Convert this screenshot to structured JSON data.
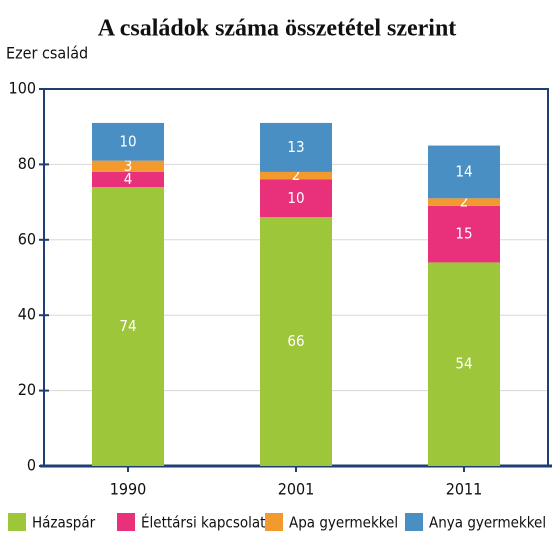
{
  "chart_data": {
    "type": "stacked_bar",
    "title": "A családok száma összetétel szerint",
    "y_label": "Ezer család",
    "categories": [
      "1990",
      "2001",
      "2011"
    ],
    "series": [
      {
        "name": "Házaspár",
        "color": "#9dc63b",
        "values": [
          74,
          66,
          54
        ]
      },
      {
        "name": "Élettársi kapcsolat",
        "color": "#e8317a",
        "values": [
          4,
          10,
          15
        ]
      },
      {
        "name": "Apa gyermekkel",
        "color": "#f29a2e",
        "values": [
          3,
          2,
          2
        ]
      },
      {
        "name": "Anya gyermekkel",
        "color": "#4a8fc4",
        "values": [
          10,
          13,
          14
        ]
      }
    ],
    "ylim": [
      0,
      100
    ],
    "yticks": [
      0,
      20,
      40,
      60,
      80,
      100
    ],
    "grid": true
  }
}
